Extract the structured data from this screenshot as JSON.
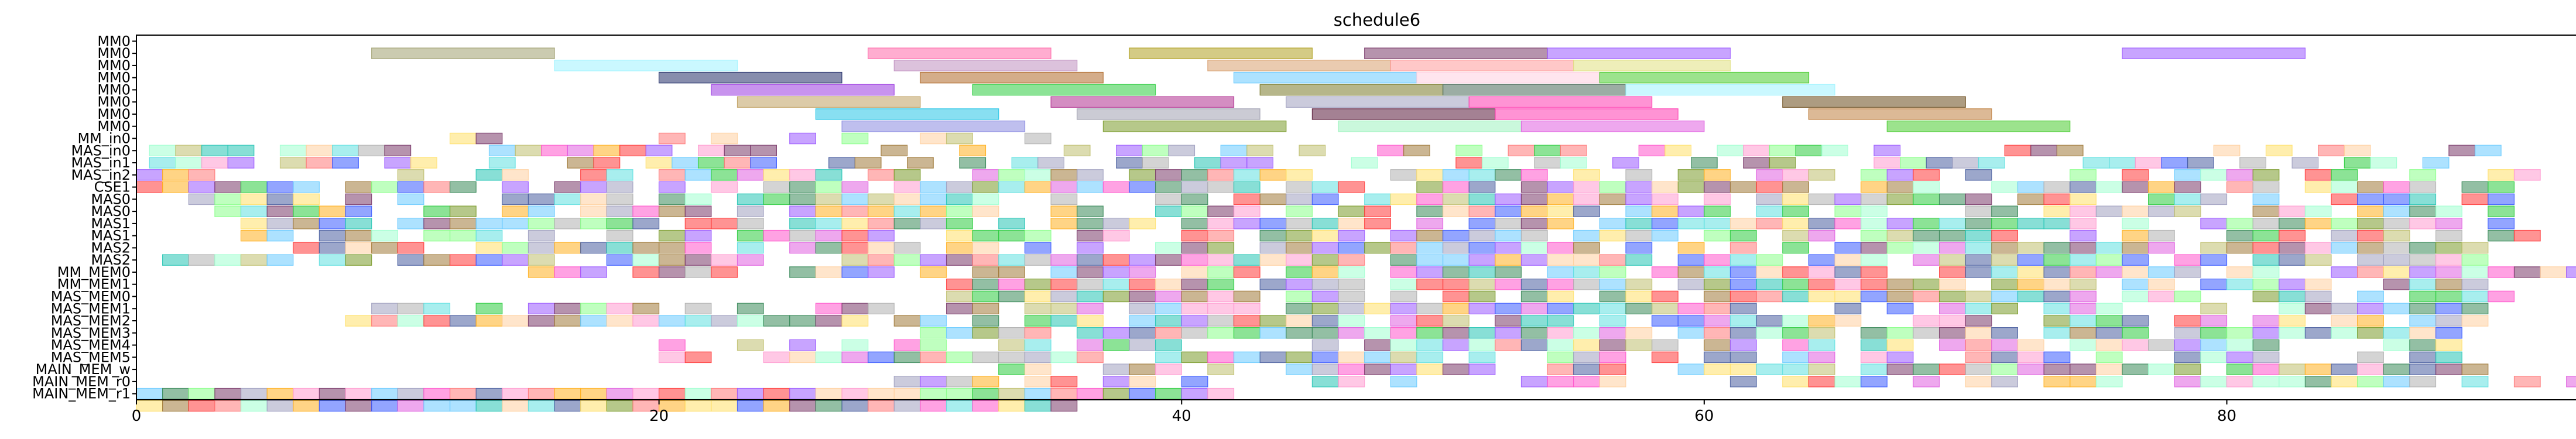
{
  "chart_data": {
    "type": "gantt",
    "title": "schedule6",
    "xlabel": "",
    "ylabel": "",
    "xlim": [
      0,
      95
    ],
    "x_ticks": [
      0,
      20,
      40,
      60,
      80
    ],
    "grid": false,
    "legend": "none",
    "rows": [
      "MM0",
      "MM0",
      "MM0",
      "MM0",
      "MM0",
      "MM0",
      "MM0",
      "MM0",
      "MM_in0",
      "MAS_in0",
      "MAS_in1",
      "MAS_in2",
      "CSE1",
      "MAS0",
      "MAS0",
      "MAS1",
      "MAS1",
      "MAS2",
      "MAS2",
      "MM_MEM0",
      "MM_MEM1",
      "MAS_MEM0",
      "MAS_MEM1",
      "MAS_MEM2",
      "MAS_MEM3",
      "MAS_MEM4",
      "MAS_MEM5",
      "MAIN_MEM_w",
      "MAIN_MEM_r0",
      "MAIN_MEM_r1"
    ],
    "palette": [
      "#ff3b3b",
      "#2ecc40",
      "#3b5bff",
      "#ff55cc",
      "#ffb020",
      "#27c5b5",
      "#9b59ff",
      "#7a9a2a",
      "#4a5fa0",
      "#ff7a7a",
      "#8aff8a",
      "#a07a3a",
      "#ffe06a",
      "#a0a0c0",
      "#ff9ad0",
      "#6acbff",
      "#7a3a6a",
      "#c0c070",
      "#3a8a5a",
      "#e060e0",
      "#60e0e0",
      "#b0b0b0",
      "#ffd0a0",
      "#a0ffd0"
    ],
    "lane_bars": [
      [
        [
          9,
          16,
          "#a0a070"
        ],
        [
          28,
          35,
          "#ff6aaa"
        ],
        [
          38,
          45,
          "#b0a020"
        ],
        [
          47,
          54,
          "#7a3a6a"
        ],
        [
          54,
          61,
          "#9b59ff"
        ],
        [
          76,
          83,
          "#9b59ff"
        ]
      ],
      [
        [
          16,
          23,
          "#9ff3ff"
        ],
        [
          29,
          36,
          "#c090c0"
        ],
        [
          41,
          48,
          "#d8a070"
        ],
        [
          48,
          55,
          "#ff9a9a"
        ],
        [
          55,
          61,
          "#e0e080"
        ]
      ],
      [
        [
          20,
          27,
          "#24306a"
        ],
        [
          30,
          37,
          "#b06a2a"
        ],
        [
          42,
          49,
          "#6acbff"
        ],
        [
          49,
          56,
          "#ffd0e0"
        ],
        [
          56,
          64,
          "#4acc30"
        ]
      ],
      [
        [
          22,
          29,
          "#9b3be0"
        ],
        [
          32,
          39,
          "#2ecc40"
        ],
        [
          43,
          50,
          "#7a7a2a"
        ],
        [
          50,
          57,
          "#4a6a5a"
        ],
        [
          57,
          65,
          "#9ff3ff"
        ]
      ],
      [
        [
          23,
          30,
          "#c0a060"
        ],
        [
          35,
          42,
          "#b03090"
        ],
        [
          44,
          51,
          "#a0a0c0"
        ],
        [
          51,
          58,
          "#ff3bb0"
        ],
        [
          63,
          70,
          "#6a4a1a"
        ]
      ],
      [
        [
          26,
          33,
          "#27c5e5"
        ],
        [
          36,
          43,
          "#a0a0b0"
        ],
        [
          45,
          52,
          "#5a1a3a"
        ],
        [
          52,
          59,
          "#ff3bb0"
        ],
        [
          64,
          71,
          "#c08040"
        ]
      ],
      [
        [
          27,
          34,
          "#8a8ae0"
        ],
        [
          37,
          44,
          "#7a9a2a"
        ],
        [
          46,
          53,
          "#9ff3c0"
        ],
        [
          53,
          60,
          "#e060e0"
        ],
        [
          67,
          74,
          "#4acc30"
        ]
      ]
    ],
    "fill_rows": [
      {
        "start": 8,
        "end": 35,
        "density": 0.25
      },
      {
        "start": 0.5,
        "end": 90,
        "density": 0.55
      },
      {
        "start": 0.5,
        "end": 90,
        "density": 0.55
      },
      {
        "start": 0,
        "end": 92,
        "density": 0.65
      },
      {
        "start": 0,
        "end": 91,
        "density": 0.85
      },
      {
        "start": 2,
        "end": 91,
        "density": 0.7
      },
      {
        "start": 3,
        "end": 92,
        "density": 0.75
      },
      {
        "start": 3,
        "end": 91,
        "density": 0.8
      },
      {
        "start": 4,
        "end": 92,
        "density": 0.75
      },
      {
        "start": 6,
        "end": 91,
        "density": 0.8
      },
      {
        "start": 1,
        "end": 92,
        "density": 0.8
      },
      {
        "start": 15,
        "end": 94,
        "density": 0.8
      },
      {
        "start": 30,
        "end": 90,
        "density": 0.8
      },
      {
        "start": 31,
        "end": 91,
        "density": 0.85
      },
      {
        "start": 8,
        "end": 90,
        "density": 0.65
      },
      {
        "start": 8,
        "end": 90,
        "density": 0.8
      },
      {
        "start": 30,
        "end": 89,
        "density": 0.85
      },
      {
        "start": 19,
        "end": 90,
        "density": 0.7
      },
      {
        "start": 19,
        "end": 90,
        "density": 0.75
      },
      {
        "start": 30,
        "end": 90,
        "density": 0.8
      },
      {
        "start": 29,
        "end": 94,
        "density": 0.7
      },
      {
        "start": 0,
        "end": 42,
        "density": 1.0
      },
      {
        "start": 0,
        "end": 36,
        "density": 1.0
      }
    ]
  }
}
